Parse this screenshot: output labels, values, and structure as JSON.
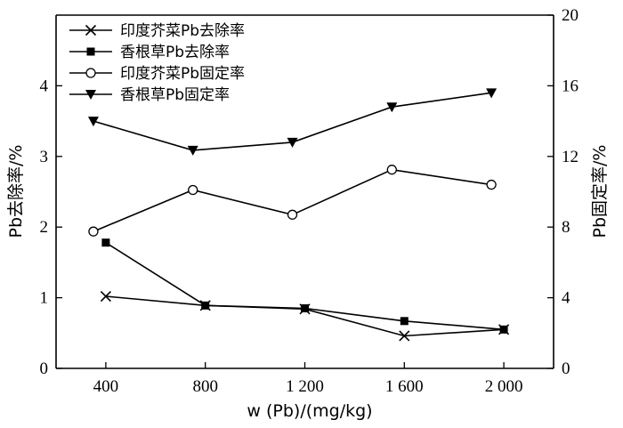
{
  "chart_data": {
    "type": "line",
    "xlabel": "w (Pb)/(mg/kg)",
    "ylabel_left": "Pb去除率/%",
    "ylabel_right": "Pb固定率/%",
    "x_ticks": [
      {
        "value": 400,
        "label": "400"
      },
      {
        "value": 800,
        "label": "800"
      },
      {
        "value": 1200,
        "label": "1 200"
      },
      {
        "value": 1600,
        "label": "1 600"
      },
      {
        "value": 2000,
        "label": "2 000"
      }
    ],
    "xlim": [
      200,
      2200
    ],
    "ylim_left": [
      0,
      5
    ],
    "ylim_right": [
      0,
      20
    ],
    "y_ticks_left": [
      0,
      1,
      2,
      3,
      4
    ],
    "y_ticks_right": [
      0,
      4,
      8,
      12,
      16,
      20
    ],
    "legend_position": "top-left",
    "series": [
      {
        "name": "印度芥菜Pb去除率",
        "axis": "left",
        "marker": "x",
        "points": [
          [
            400,
            1.02
          ],
          [
            800,
            0.89
          ],
          [
            1200,
            0.84
          ],
          [
            1600,
            0.46
          ],
          [
            2000,
            0.55
          ]
        ]
      },
      {
        "name": "香根草Pb去除率",
        "axis": "left",
        "marker": "square-filled",
        "points": [
          [
            400,
            1.78
          ],
          [
            800,
            0.89
          ],
          [
            1200,
            0.85
          ],
          [
            1600,
            0.67
          ],
          [
            2000,
            0.55
          ]
        ]
      },
      {
        "name": "印度芥菜Pb固定率",
        "axis": "right",
        "marker": "circle-open",
        "points": [
          [
            350,
            7.75
          ],
          [
            750,
            10.1
          ],
          [
            1150,
            8.7
          ],
          [
            1550,
            11.25
          ],
          [
            1950,
            10.4
          ]
        ]
      },
      {
        "name": "香根草Pb固定率",
        "axis": "right",
        "marker": "triangle-down-filled",
        "points": [
          [
            350,
            14.0
          ],
          [
            750,
            12.35
          ],
          [
            1150,
            12.8
          ],
          [
            1550,
            14.8
          ],
          [
            1950,
            15.6
          ]
        ]
      }
    ]
  }
}
